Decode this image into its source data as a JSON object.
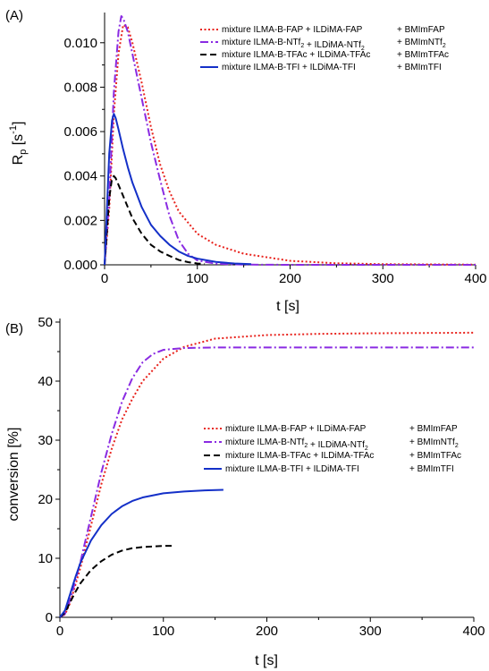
{
  "chart_data": [
    {
      "panel_label": "(A)",
      "type": "line",
      "xlabel": "t [s]",
      "ylabel": "R",
      "ylabel_sub": "p",
      "ylabel_units": " [s",
      "ylabel_sup": "-1",
      "ylabel_close": "]",
      "xlim": [
        0,
        400
      ],
      "ylim": [
        0,
        0.0112
      ],
      "xticks": [
        0,
        100,
        200,
        300,
        400
      ],
      "xtick_labels": [
        "0",
        "100",
        "200",
        "300",
        "400"
      ],
      "yticks": [
        0,
        0.002,
        0.004,
        0.006,
        0.008,
        0.01
      ],
      "ytick_labels": [
        "0.000",
        "0.002",
        "0.004",
        "0.006",
        "0.008",
        "0.010"
      ],
      "grid": false,
      "legend_position": "top-right",
      "series": [
        {
          "name": "mixture ILMA-B-FAP + ILDiMA-FAP + BMImFAP",
          "color": "#e8231d",
          "dash": "dotted",
          "x": [
            0,
            5,
            10,
            15,
            20,
            25,
            30,
            40,
            50,
            60,
            70,
            80,
            100,
            120,
            150,
            200,
            250,
            300,
            400
          ],
          "y": [
            0,
            0.0025,
            0.0068,
            0.0095,
            0.0108,
            0.0107,
            0.01,
            0.0082,
            0.0062,
            0.0045,
            0.0033,
            0.0024,
            0.0014,
            0.0009,
            0.0005,
            0.00018,
            7e-05,
            3e-05,
            1e-05
          ]
        },
        {
          "name": "mixture ILMA-B-NTf2 + ILDiMA-NTf2 + BMImNTf2",
          "color": "#8a2be2",
          "dash": "dashdot",
          "x": [
            0,
            5,
            10,
            15,
            18,
            20,
            25,
            30,
            40,
            50,
            60,
            70,
            80,
            90,
            100,
            120,
            150,
            200,
            400
          ],
          "y": [
            0,
            0.003,
            0.0078,
            0.0105,
            0.0112,
            0.0111,
            0.0105,
            0.0095,
            0.0075,
            0.0055,
            0.0038,
            0.0022,
            0.0011,
            0.0005,
            0.0002,
            5e-05,
            1e-05,
            0,
            0
          ]
        },
        {
          "name": "mixture ILMA-B-TFAc + ILDiMA-TFAc + BMImTFAc",
          "color": "#000000",
          "dash": "dashed",
          "x": [
            0,
            2,
            5,
            8,
            10,
            12,
            15,
            20,
            25,
            30,
            40,
            50,
            60,
            70,
            80,
            90,
            100,
            108
          ],
          "y": [
            0,
            0.0012,
            0.003,
            0.0039,
            0.004,
            0.0039,
            0.0036,
            0.0031,
            0.0026,
            0.0021,
            0.0014,
            0.0009,
            0.0006,
            0.0004,
            0.00022,
            0.00012,
            6e-05,
            4e-05
          ]
        },
        {
          "name": "mixture ILMA-B-TFI + ILDiMA-TFI + BMImTFI",
          "color": "#1430c8",
          "dash": "solid",
          "x": [
            0,
            2,
            5,
            8,
            10,
            12,
            15,
            20,
            25,
            30,
            40,
            50,
            60,
            70,
            80,
            90,
            100,
            120,
            140,
            158
          ],
          "y": [
            0,
            0.002,
            0.005,
            0.0065,
            0.0068,
            0.0066,
            0.0061,
            0.0052,
            0.0044,
            0.0037,
            0.0026,
            0.0018,
            0.0013,
            0.0009,
            0.0006,
            0.0004,
            0.00028,
            0.00013,
            6e-05,
            3e-05
          ]
        }
      ],
      "legend": [
        {
          "pre": "mixture ILMA-B-FAP + ILDiMA-FAP",
          "sub1": "",
          "mid": "",
          "sub2": "",
          "tail": "+ BMImFAP",
          "sub3": ""
        },
        {
          "pre": "mixture ILMA-B-NTf",
          "sub1": "2",
          "mid": " + ILDiMA-NTf",
          "sub2": "2",
          "tail": "+ BMImNTf",
          "sub3": "2"
        },
        {
          "pre": "mixture ILMA-B-TFAc + ILDiMA-TFAc",
          "sub1": "",
          "mid": "",
          "sub2": "",
          "tail": "+ BMImTFAc",
          "sub3": ""
        },
        {
          "pre": "mixture ILMA-B-TFI + ILDiMA-TFI",
          "sub1": "",
          "mid": "",
          "sub2": "",
          "tail": "+ BMImTFI",
          "sub3": ""
        }
      ]
    },
    {
      "panel_label": "(B)",
      "type": "line",
      "xlabel": "t [s]",
      "ylabel": "conversion [%]",
      "xlim": [
        0,
        400
      ],
      "ylim": [
        0,
        50
      ],
      "xticks": [
        0,
        100,
        200,
        300,
        400
      ],
      "xtick_labels": [
        "0",
        "100",
        "200",
        "300",
        "400"
      ],
      "yticks": [
        0,
        10,
        20,
        30,
        40,
        50
      ],
      "ytick_labels": [
        "0",
        "10",
        "20",
        "30",
        "40",
        "50"
      ],
      "grid": false,
      "legend_position": "right",
      "series": [
        {
          "name": "mixture ILMA-B-FAP + ILDiMA-FAP + BMImFAP",
          "color": "#e8231d",
          "dash": "dotted",
          "x": [
            0,
            5,
            10,
            20,
            30,
            40,
            50,
            60,
            70,
            80,
            100,
            120,
            150,
            200,
            250,
            300,
            400
          ],
          "y": [
            0,
            0.5,
            2.5,
            8.5,
            15.5,
            22.5,
            28.5,
            33.5,
            37.0,
            40.0,
            43.8,
            45.8,
            47.2,
            47.8,
            48.0,
            48.1,
            48.2
          ]
        },
        {
          "name": "mixture ILMA-B-NTf2 + ILDiMA-NTf2 + BMImNTf2",
          "color": "#8a2be2",
          "dash": "dashdot",
          "x": [
            0,
            5,
            10,
            20,
            30,
            40,
            50,
            60,
            70,
            80,
            90,
            100,
            120,
            150,
            200,
            300,
            400
          ],
          "y": [
            0,
            0.6,
            3.0,
            9.5,
            17.0,
            24.5,
            31.0,
            36.5,
            40.5,
            43.2,
            44.6,
            45.3,
            45.6,
            45.7,
            45.7,
            45.7,
            45.7
          ]
        },
        {
          "name": "mixture ILMA-B-TFAc + ILDiMA-TFAc + BMImTFAc",
          "color": "#000000",
          "dash": "dashed",
          "x": [
            0,
            5,
            10,
            15,
            20,
            30,
            40,
            50,
            60,
            70,
            80,
            90,
            100,
            108
          ],
          "y": [
            0,
            0.8,
            2.6,
            4.3,
            5.8,
            8.0,
            9.5,
            10.6,
            11.3,
            11.7,
            11.9,
            12.0,
            12.1,
            12.1
          ]
        },
        {
          "name": "mixture ILMA-B-TFI + ILDiMA-TFI + BMImTFI",
          "color": "#1430c8",
          "dash": "solid",
          "x": [
            0,
            5,
            10,
            15,
            20,
            30,
            40,
            50,
            60,
            70,
            80,
            100,
            120,
            140,
            158
          ],
          "y": [
            0,
            1.2,
            4.0,
            6.8,
            9.3,
            13.0,
            15.6,
            17.5,
            18.8,
            19.7,
            20.3,
            21.0,
            21.3,
            21.5,
            21.6
          ]
        }
      ],
      "legend": [
        {
          "pre": "mixture ILMA-B-FAP + ILDiMA-FAP",
          "sub1": "",
          "mid": "",
          "sub2": "",
          "tail": "+ BMImFAP",
          "sub3": ""
        },
        {
          "pre": "mixture ILMA-B-NTf",
          "sub1": "2",
          "mid": " + ILDiMA-NTf",
          "sub2": "2",
          "tail": "+ BMImNTf",
          "sub3": "2"
        },
        {
          "pre": "mixture ILMA-B-TFAc + ILDiMA-TFAc",
          "sub1": "",
          "mid": "",
          "sub2": "",
          "tail": "+ BMImTFAc",
          "sub3": ""
        },
        {
          "pre": "mixture ILMA-B-TFI + ILDiMA-TFI",
          "sub1": "",
          "mid": "",
          "sub2": "",
          "tail": "+ BMImTFI",
          "sub3": ""
        }
      ]
    }
  ]
}
